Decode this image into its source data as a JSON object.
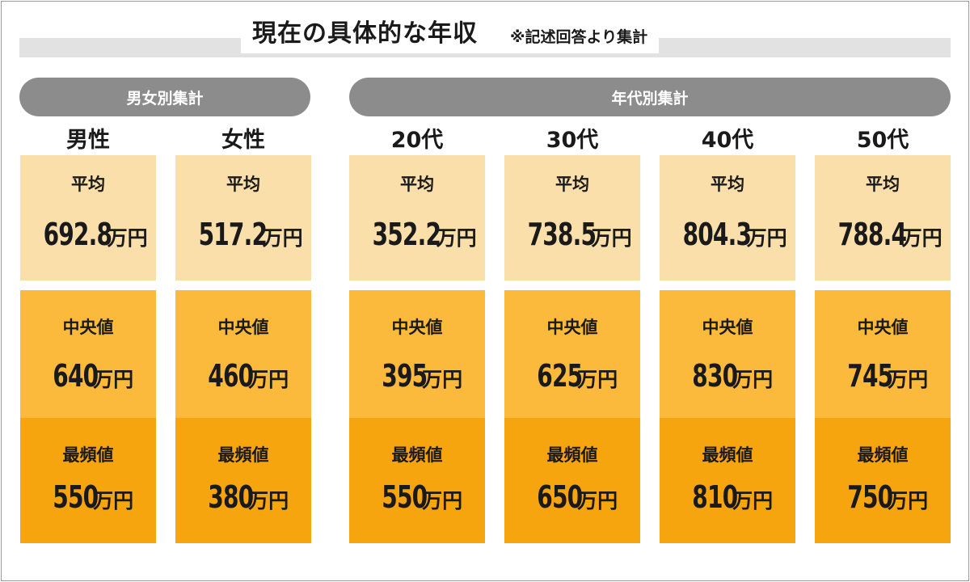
{
  "title": "現在の具体的な年収",
  "note": "※記述回答より集計",
  "groups": {
    "gender": "男女別集計",
    "age": "年代別集計"
  },
  "labels": {
    "avg": "平均",
    "median": "中央値",
    "mode": "最頻値",
    "unit": "万円"
  },
  "colors": {
    "avg_fill": "#fbdfaa",
    "median_fill": "#fbba3c",
    "mode_fill": "#f7a50f",
    "pill": "#8c8c8c"
  },
  "chart_data": {
    "type": "table",
    "title": "現在の具体的な年収",
    "unit": "万円",
    "categories": [
      "男性",
      "女性",
      "20代",
      "30代",
      "40代",
      "50代"
    ],
    "series": [
      {
        "name": "平均",
        "values": [
          "692.8",
          "517.2",
          "352.2",
          "738.5",
          "804.3",
          "788.4"
        ]
      },
      {
        "name": "中央値",
        "values": [
          "640",
          "460",
          "395",
          "625",
          "830",
          "745"
        ]
      },
      {
        "name": "最頻値",
        "values": [
          "550",
          "380",
          "550",
          "650",
          "810",
          "750"
        ]
      }
    ]
  }
}
